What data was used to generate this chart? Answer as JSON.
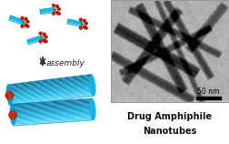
{
  "fig_width": 2.52,
  "fig_height": 1.58,
  "dpi": 100,
  "bg_color": "#ffffff",
  "tube_color": "#1ab8e8",
  "tube_dark": "#0e9ac8",
  "tube_light": "#4dd0f0",
  "core_color": "#dd2200",
  "drug_red": "#cc1111",
  "drug_green": "#2a8822",
  "arrow_color": "#333333",
  "assembly_text": "assembly",
  "label_line1": "Drug Amphiphile",
  "label_line2": "Nanotubes",
  "scale_bar_text": "50 nm",
  "font_size_assembly": 6.5,
  "font_size_label": 7.0,
  "font_size_scale": 5.5
}
